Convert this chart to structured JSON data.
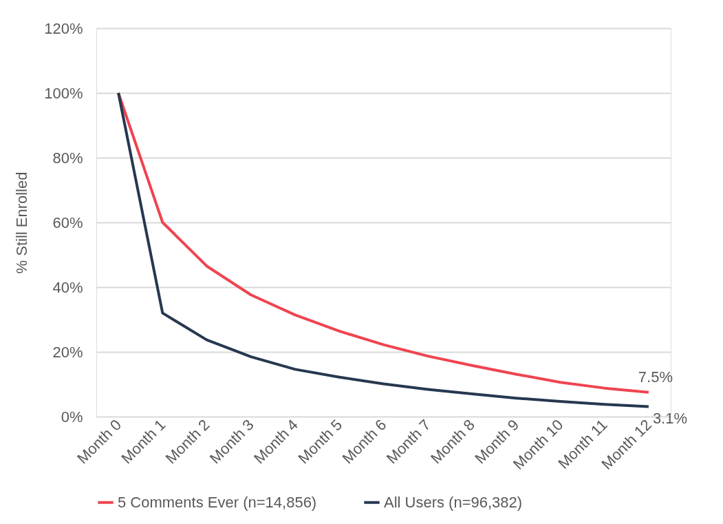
{
  "chart_data": {
    "type": "line",
    "ylabel": "% Still Enrolled",
    "categories": [
      "Month 0",
      "Month 1",
      "Month 2",
      "Month 3",
      "Month 4",
      "Month 5",
      "Month 6",
      "Month 7",
      "Month 8",
      "Month 9",
      "Month 10",
      "Month 11",
      "Month 12"
    ],
    "series": [
      {
        "name": "5 Comments Ever (n=14,856)",
        "color": "#ef4450",
        "values": [
          100,
          60,
          46.5,
          37.6,
          31.4,
          26.4,
          22.2,
          18.7,
          15.8,
          13.1,
          10.6,
          8.8,
          7.5
        ],
        "value_labels": [
          null,
          null,
          null,
          null,
          null,
          null,
          null,
          null,
          null,
          null,
          null,
          null,
          "7.5%"
        ]
      },
      {
        "name": "All Users (n=96,382)",
        "color": "#263850",
        "values": [
          100,
          32,
          23.7,
          18.5,
          14.6,
          12.2,
          10.1,
          8.4,
          7.0,
          5.7,
          4.7,
          3.8,
          3.1
        ],
        "value_labels": [
          null,
          null,
          null,
          null,
          null,
          null,
          null,
          null,
          null,
          null,
          null,
          null,
          "3.1%"
        ]
      }
    ],
    "ylim": [
      0,
      120
    ],
    "yticks": [
      {
        "value": 0,
        "label": "0%"
      },
      {
        "value": 20,
        "label": "20%"
      },
      {
        "value": 40,
        "label": "40%"
      },
      {
        "value": 60,
        "label": "60%"
      },
      {
        "value": 80,
        "label": "80%"
      },
      {
        "value": 100,
        "label": "100%"
      },
      {
        "value": 120,
        "label": "120%"
      }
    ],
    "grid": "y",
    "legend": "bottom",
    "marker": "none",
    "line_style": "solid"
  }
}
